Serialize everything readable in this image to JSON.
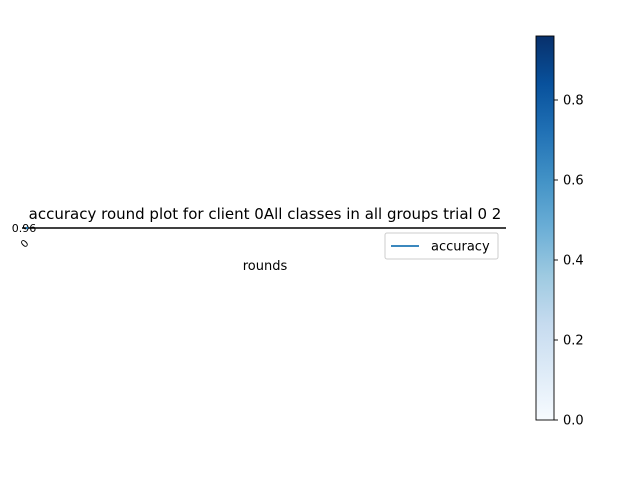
{
  "chart_data": {
    "type": "line",
    "title": "accuracy round plot for client 0All classes in all groups trial 0 2",
    "xlabel": "rounds",
    "ylabel": "",
    "series": [
      {
        "name": "accuracy",
        "color": "#1f77b4",
        "x": [
          0
        ],
        "y": [
          0.96
        ]
      }
    ],
    "point_labels": [
      "0.96"
    ],
    "x_tick_labels": [
      "0"
    ],
    "legend_position": "upper-right",
    "grid": false,
    "colorbar": {
      "colormap": "Blues",
      "range": [
        0.0,
        0.96
      ],
      "ticks": [
        "0.0",
        "0.2",
        "0.4",
        "0.6",
        "0.8"
      ],
      "colors": {
        "stops": [
          "#f7fbff",
          "#deebf7",
          "#c6dbef",
          "#9ecae1",
          "#6baed6",
          "#4292c6",
          "#2171b5",
          "#08519c",
          "#08306b"
        ]
      }
    }
  }
}
